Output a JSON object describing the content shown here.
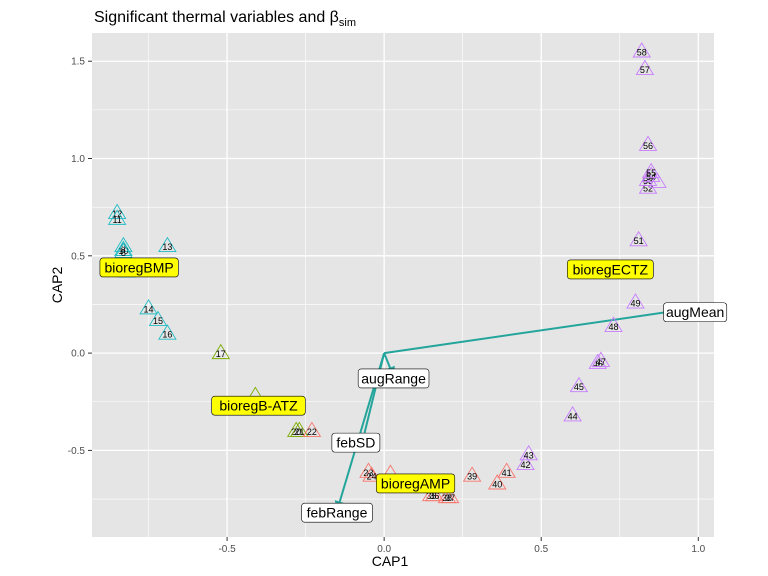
{
  "chart_data": {
    "type": "scatter",
    "title": "Significant thermal variables and β",
    "title_subscript": "sim",
    "xlabel": "CAP1",
    "ylabel": "CAP2",
    "xlim": [
      -0.93,
      1.05
    ],
    "ylim": [
      -0.945,
      1.645
    ],
    "x_ticks": [
      -0.5,
      0.0,
      0.5,
      1.0
    ],
    "x_tick_labels": [
      "-0.5",
      "0.0",
      "0.5",
      "1.0"
    ],
    "y_ticks": [
      -0.5,
      0.0,
      0.5,
      1.0,
      1.5
    ],
    "y_tick_labels": [
      "-0.5",
      "0.0",
      "0.5",
      "1.0",
      "1.5"
    ],
    "grid": true,
    "colors": {
      "panel": "#e5e5e5",
      "grid": "#ffffff",
      "BMP": "#22bcc4",
      "ATZ": "#7cae00",
      "AMP": "#f8766d",
      "ECTZ": "#c77cff",
      "arrow": "#23a59c",
      "highlight": "#ffff00"
    },
    "series": [
      {
        "group": "BMP",
        "points": [
          {
            "label": "12",
            "x": -0.85,
            "y": 0.72
          },
          {
            "label": "11",
            "x": -0.85,
            "y": 0.69
          },
          {
            "label": "9",
            "x": -0.83,
            "y": 0.55
          },
          {
            "label": "10",
            "x": -0.83,
            "y": 0.53
          },
          {
            "label": "8",
            "x": -0.83,
            "y": 0.52
          },
          {
            "label": "",
            "x": -0.82,
            "y": 0.42
          },
          {
            "label": "13",
            "x": -0.69,
            "y": 0.55
          },
          {
            "label": "14",
            "x": -0.75,
            "y": 0.23
          },
          {
            "label": "15",
            "x": -0.72,
            "y": 0.17
          },
          {
            "label": "16",
            "x": -0.69,
            "y": 0.1
          }
        ]
      },
      {
        "group": "ATZ",
        "points": [
          {
            "label": "17",
            "x": -0.52,
            "y": 0.0
          },
          {
            "label": "",
            "x": -0.41,
            "y": -0.22
          },
          {
            "label": "20",
            "x": -0.28,
            "y": -0.4
          },
          {
            "label": "21",
            "x": -0.27,
            "y": -0.4
          }
        ]
      },
      {
        "group": "AMP",
        "points": [
          {
            "label": "22",
            "x": -0.23,
            "y": -0.4
          },
          {
            "label": "23",
            "x": -0.05,
            "y": -0.61
          },
          {
            "label": "24",
            "x": -0.04,
            "y": -0.63
          },
          {
            "label": "",
            "x": 0.02,
            "y": -0.62
          },
          {
            "label": "35",
            "x": 0.15,
            "y": -0.73
          },
          {
            "label": "36",
            "x": 0.16,
            "y": -0.73
          },
          {
            "label": "37",
            "x": 0.21,
            "y": -0.74
          },
          {
            "label": "38",
            "x": 0.2,
            "y": -0.74
          },
          {
            "label": "39",
            "x": 0.28,
            "y": -0.63
          },
          {
            "label": "40",
            "x": 0.36,
            "y": -0.67
          },
          {
            "label": "41",
            "x": 0.39,
            "y": -0.61
          }
        ]
      },
      {
        "group": "ECTZ",
        "points": [
          {
            "label": "42",
            "x": 0.45,
            "y": -0.57
          },
          {
            "label": "43",
            "x": 0.46,
            "y": -0.52
          },
          {
            "label": "44",
            "x": 0.6,
            "y": -0.32
          },
          {
            "label": "45",
            "x": 0.62,
            "y": -0.17
          },
          {
            "label": "46",
            "x": 0.68,
            "y": -0.05
          },
          {
            "label": "47",
            "x": 0.69,
            "y": -0.04
          },
          {
            "label": "48",
            "x": 0.73,
            "y": 0.14
          },
          {
            "label": "49",
            "x": 0.8,
            "y": 0.26
          },
          {
            "label": "51",
            "x": 0.81,
            "y": 0.58
          },
          {
            "label": "52",
            "x": 0.84,
            "y": 0.85
          },
          {
            "label": "53",
            "x": 0.84,
            "y": 0.89
          },
          {
            "label": "54",
            "x": 0.85,
            "y": 0.91
          },
          {
            "label": "55",
            "x": 0.85,
            "y": 0.93
          },
          {
            "label": "",
            "x": 0.87,
            "y": 0.88
          },
          {
            "label": "56",
            "x": 0.84,
            "y": 1.07
          },
          {
            "label": "57",
            "x": 0.83,
            "y": 1.46
          },
          {
            "label": "58",
            "x": 0.82,
            "y": 1.55
          }
        ]
      }
    ],
    "arrows": [
      {
        "label": "augMean",
        "x": 0.94,
        "y": 0.22
      },
      {
        "label": "augRange",
        "x": 0.03,
        "y": -0.12
      },
      {
        "label": "febSD",
        "x": -0.07,
        "y": -0.46
      },
      {
        "label": "febRange",
        "x": -0.15,
        "y": -0.81
      }
    ],
    "arrow_labels": [
      {
        "label": "augMean",
        "x": 0.99,
        "y": 0.21
      },
      {
        "label": "augRange",
        "x": 0.03,
        "y": -0.13
      },
      {
        "label": "febSD",
        "x": -0.09,
        "y": -0.46
      },
      {
        "label": "febRange",
        "x": -0.15,
        "y": -0.82
      }
    ],
    "region_labels": [
      {
        "label": "bioregBMP",
        "x": -0.78,
        "y": 0.44
      },
      {
        "label": "bioregB-ATZ",
        "x": -0.4,
        "y": -0.27
      },
      {
        "label": "bioregAMP",
        "x": 0.1,
        "y": -0.67
      },
      {
        "label": "bioregECTZ",
        "x": 0.72,
        "y": 0.43
      }
    ]
  }
}
